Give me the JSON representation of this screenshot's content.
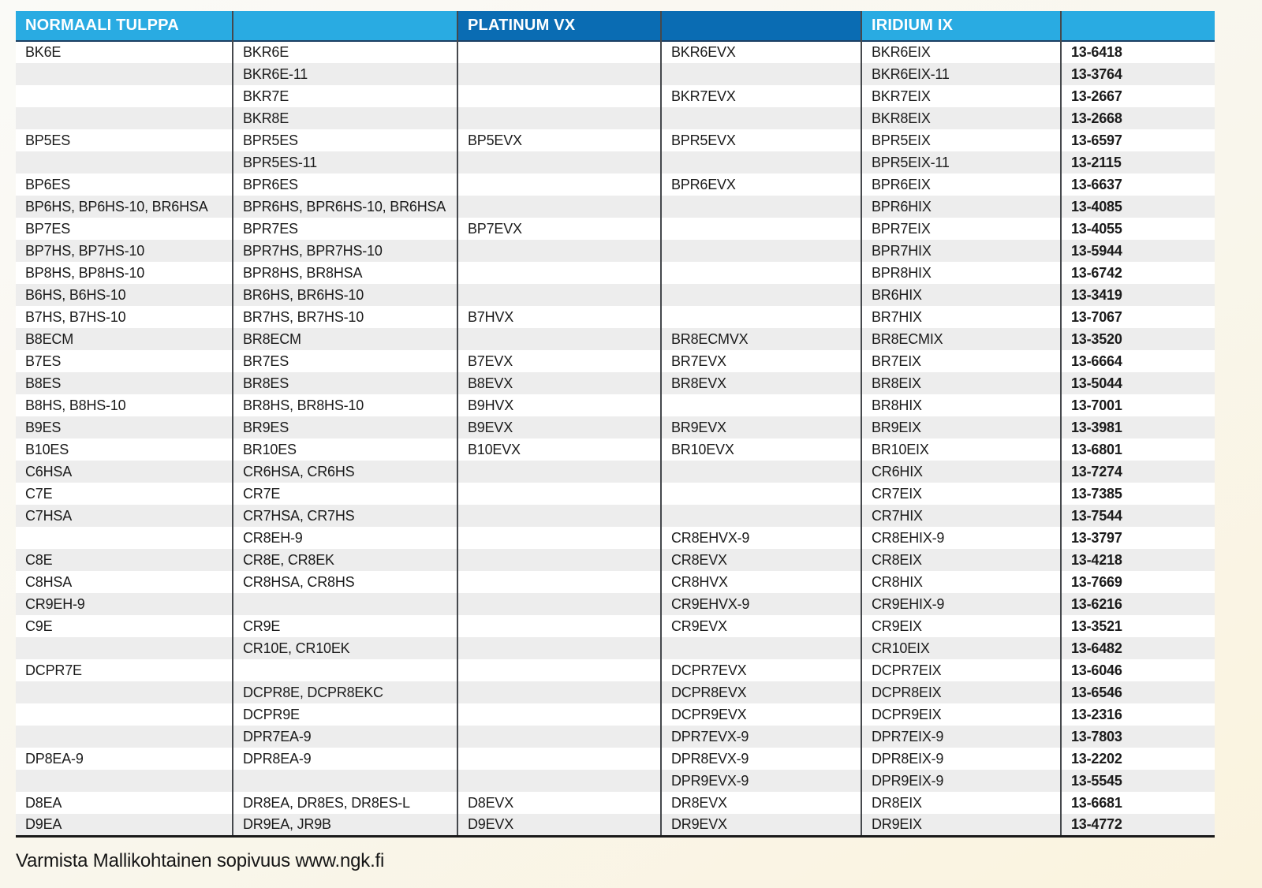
{
  "page": {
    "footer_text": "Varmista Mallikohtainen sopivuus www.ngk.fi"
  },
  "table": {
    "columns": [
      {
        "label": "NORMAALI TULPPA",
        "tone": "light"
      },
      {
        "label": "",
        "tone": "light"
      },
      {
        "label": "PLATINUM VX",
        "tone": "dark"
      },
      {
        "label": "",
        "tone": "dark"
      },
      {
        "label": "IRIDIUM IX",
        "tone": "light"
      },
      {
        "label": "",
        "tone": "light"
      }
    ],
    "rows": [
      [
        "BK6E",
        "BKR6E",
        "",
        "BKR6EVX",
        "BKR6EIX",
        "13-6418"
      ],
      [
        "",
        "BKR6E-11",
        "",
        "",
        "BKR6EIX-11",
        "13-3764"
      ],
      [
        "",
        "BKR7E",
        "",
        "BKR7EVX",
        "BKR7EIX",
        "13-2667"
      ],
      [
        "",
        "BKR8E",
        "",
        "",
        "BKR8EIX",
        "13-2668"
      ],
      [
        "BP5ES",
        "BPR5ES",
        "BP5EVX",
        "BPR5EVX",
        "BPR5EIX",
        "13-6597"
      ],
      [
        "",
        "BPR5ES-11",
        "",
        "",
        "BPR5EIX-11",
        "13-2115"
      ],
      [
        "BP6ES",
        "BPR6ES",
        "",
        "BPR6EVX",
        "BPR6EIX",
        "13-6637"
      ],
      [
        "BP6HS, BP6HS-10, BR6HSA",
        "BPR6HS, BPR6HS-10, BR6HSA",
        "",
        "",
        "BPR6HIX",
        "13-4085"
      ],
      [
        "BP7ES",
        "BPR7ES",
        "BP7EVX",
        "",
        "BPR7EIX",
        "13-4055"
      ],
      [
        "BP7HS, BP7HS-10",
        "BPR7HS, BPR7HS-10",
        "",
        "",
        "BPR7HIX",
        "13-5944"
      ],
      [
        "BP8HS, BP8HS-10",
        "BPR8HS, BR8HSA",
        "",
        "",
        "BPR8HIX",
        "13-6742"
      ],
      [
        "B6HS, B6HS-10",
        "BR6HS, BR6HS-10",
        "",
        "",
        "BR6HIX",
        "13-3419"
      ],
      [
        "B7HS, B7HS-10",
        "BR7HS, BR7HS-10",
        "B7HVX",
        "",
        "BR7HIX",
        "13-7067"
      ],
      [
        "B8ECM",
        "BR8ECM",
        "",
        "BR8ECMVX",
        "BR8ECMIX",
        "13-3520"
      ],
      [
        "B7ES",
        "BR7ES",
        "B7EVX",
        "BR7EVX",
        "BR7EIX",
        "13-6664"
      ],
      [
        "B8ES",
        "BR8ES",
        "B8EVX",
        "BR8EVX",
        "BR8EIX",
        "13-5044"
      ],
      [
        "B8HS, B8HS-10",
        "BR8HS, BR8HS-10",
        "B9HVX",
        "",
        "BR8HIX",
        "13-7001"
      ],
      [
        "B9ES",
        "BR9ES",
        "B9EVX",
        "BR9EVX",
        "BR9EIX",
        "13-3981"
      ],
      [
        "B10ES",
        "BR10ES",
        "B10EVX",
        "BR10EVX",
        "BR10EIX",
        "13-6801"
      ],
      [
        "C6HSA",
        "CR6HSA, CR6HS",
        "",
        "",
        "CR6HIX",
        "13-7274"
      ],
      [
        "C7E",
        "CR7E",
        "",
        "",
        "CR7EIX",
        "13-7385"
      ],
      [
        "C7HSA",
        "CR7HSA, CR7HS",
        "",
        "",
        "CR7HIX",
        "13-7544"
      ],
      [
        "",
        "CR8EH-9",
        "",
        "CR8EHVX-9",
        "CR8EHIX-9",
        "13-3797"
      ],
      [
        "C8E",
        "CR8E, CR8EK",
        "",
        "CR8EVX",
        "CR8EIX",
        "13-4218"
      ],
      [
        "C8HSA",
        "CR8HSA, CR8HS",
        "",
        "CR8HVX",
        "CR8HIX",
        "13-7669"
      ],
      [
        "CR9EH-9",
        "",
        "",
        "CR9EHVX-9",
        "CR9EHIX-9",
        "13-6216"
      ],
      [
        "C9E",
        "CR9E",
        "",
        "CR9EVX",
        "CR9EIX",
        "13-3521"
      ],
      [
        "",
        "CR10E, CR10EK",
        "",
        "",
        "CR10EIX",
        "13-6482"
      ],
      [
        "DCPR7E",
        "",
        "",
        "DCPR7EVX",
        "DCPR7EIX",
        "13-6046"
      ],
      [
        "",
        "DCPR8E, DCPR8EKC",
        "",
        "DCPR8EVX",
        "DCPR8EIX",
        "13-6546"
      ],
      [
        "",
        "DCPR9E",
        "",
        "DCPR9EVX",
        "DCPR9EIX",
        "13-2316"
      ],
      [
        "",
        "DPR7EA-9",
        "",
        "DPR7EVX-9",
        "DPR7EIX-9",
        "13-7803"
      ],
      [
        "DP8EA-9",
        "DPR8EA-9",
        "",
        "DPR8EVX-9",
        "DPR8EIX-9",
        "13-2202"
      ],
      [
        "",
        "",
        "",
        "DPR9EVX-9",
        "DPR9EIX-9",
        "13-5545"
      ],
      [
        "D8EA",
        "DR8EA, DR8ES, DR8ES-L",
        "D8EVX",
        "DR8EVX",
        "DR8EIX",
        "13-6681"
      ],
      [
        "D9EA",
        "DR9EA, JR9B",
        "D9EVX",
        "DR9EVX",
        "DR9EIX",
        "13-4772"
      ]
    ]
  },
  "colors": {
    "header_light": "#29abe2",
    "header_dark": "#0a6cb3",
    "row_stripe": "#ededed",
    "divider": "#45484c",
    "table_text": "#1b1b1b"
  }
}
